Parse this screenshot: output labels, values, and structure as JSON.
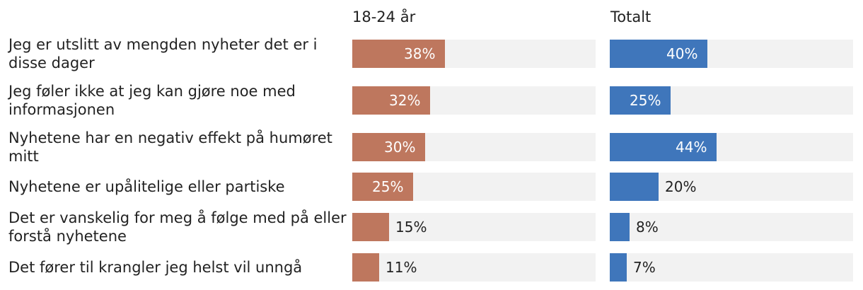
{
  "chart_data": {
    "type": "bar",
    "orientation": "horizontal",
    "categories": [
      "Jeg er utslitt av mengden nyheter det er i disse dager",
      "Jeg føler ikke at jeg kan gjøre noe med informasjonen",
      "Nyhetene har en negativ effekt på humøret mitt",
      "Nyhetene er upålitelige eller partiske",
      "Det er vanskelig for meg å følge med på eller forstå nyhetene",
      "Det fører til krangler jeg helst vil unngå"
    ],
    "series": [
      {
        "name": "18-24 år",
        "color": "#be775e",
        "values": [
          38,
          32,
          30,
          25,
          15,
          11
        ],
        "labels": [
          "38%",
          "32%",
          "30%",
          "25%",
          "15%",
          "11%"
        ]
      },
      {
        "name": "Totalt",
        "color": "#3f76bb",
        "values": [
          40,
          25,
          44,
          20,
          8,
          7
        ],
        "labels": [
          "40%",
          "25%",
          "44%",
          "20%",
          "8%",
          "7%"
        ]
      }
    ],
    "xlim": [
      0,
      100
    ],
    "value_unit": "%",
    "grid": false,
    "legend": "column headers above each panel"
  }
}
